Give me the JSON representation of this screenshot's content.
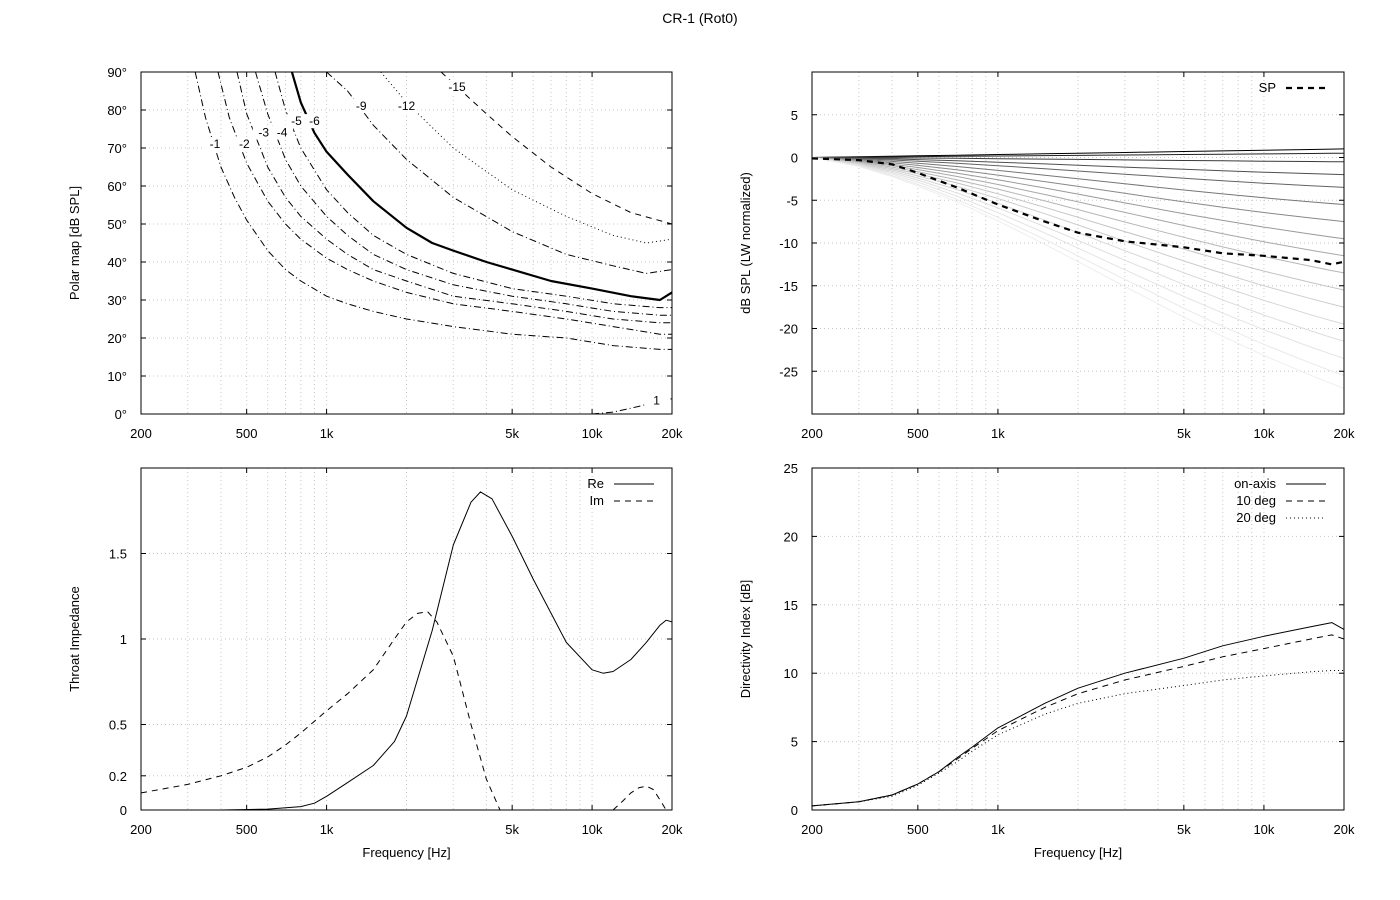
{
  "title": "CR-1 (Rot0)",
  "colors": {
    "axis": "#000000",
    "grid": "#c8c8c8"
  },
  "chart_data": [
    {
      "id": "polar",
      "type": "line",
      "title": "",
      "xlabel": "",
      "ylabel": "Polar map [dB SPL]",
      "xscale": "log",
      "xlim": [
        200,
        20000
      ],
      "ylim": [
        0,
        90
      ],
      "xticks": [
        {
          "v": 200,
          "label": "200"
        },
        {
          "v": 500,
          "label": "500"
        },
        {
          "v": 1000,
          "label": "1k"
        },
        {
          "v": 5000,
          "label": "5k"
        },
        {
          "v": 10000,
          "label": "10k"
        },
        {
          "v": 20000,
          "label": "20k"
        }
      ],
      "yticks": [
        {
          "v": 0,
          "label": "0°"
        },
        {
          "v": 10,
          "label": "10°"
        },
        {
          "v": 20,
          "label": "20°"
        },
        {
          "v": 30,
          "label": "30°"
        },
        {
          "v": 40,
          "label": "40°"
        },
        {
          "v": 50,
          "label": "50°"
        },
        {
          "v": 60,
          "label": "60°"
        },
        {
          "v": 70,
          "label": "70°"
        },
        {
          "v": 80,
          "label": "80°"
        },
        {
          "v": 90,
          "label": "90°"
        }
      ],
      "grid": true,
      "series": [
        {
          "label": "-1",
          "style": "dashdot",
          "width": 1,
          "label_at": [
            380,
            70
          ],
          "x": [
            320,
            350,
            400,
            450,
            500,
            600,
            700,
            800,
            1000,
            1200,
            1500,
            2000,
            3000,
            5000,
            8000,
            12000,
            18000,
            20000
          ],
          "y": [
            90,
            78,
            65,
            57,
            51,
            43,
            38,
            35,
            31,
            29,
            27,
            25,
            23,
            21,
            20,
            18,
            17,
            17
          ]
        },
        {
          "label": "-2",
          "style": "dashdot",
          "width": 1,
          "label_at": [
            490,
            70
          ],
          "x": [
            390,
            430,
            500,
            600,
            700,
            800,
            1000,
            1200,
            1500,
            2000,
            3000,
            5000,
            8000,
            12000,
            18000,
            20000
          ],
          "y": [
            90,
            78,
            66,
            56,
            50,
            46,
            41,
            38,
            35,
            32,
            29,
            27,
            25,
            23,
            21,
            21
          ]
        },
        {
          "label": "-3",
          "style": "dashdot",
          "width": 1,
          "label_at": [
            580,
            73
          ],
          "x": [
            460,
            500,
            600,
            700,
            800,
            1000,
            1200,
            1500,
            2000,
            3000,
            5000,
            8000,
            12000,
            18000,
            20000
          ],
          "y": [
            90,
            79,
            65,
            57,
            52,
            46,
            42,
            38,
            35,
            31,
            29,
            27,
            25,
            24,
            24
          ]
        },
        {
          "label": "-4",
          "style": "dashdot",
          "width": 1,
          "label_at": [
            680,
            73
          ],
          "x": [
            540,
            600,
            700,
            800,
            1000,
            1200,
            1500,
            2000,
            3000,
            5000,
            8000,
            12000,
            18000,
            20000
          ],
          "y": [
            90,
            79,
            67,
            60,
            52,
            47,
            42,
            38,
            34,
            31,
            29,
            27,
            26,
            26
          ]
        },
        {
          "label": "-5",
          "style": "dashdot",
          "width": 1,
          "label_at": [
            770,
            76
          ],
          "x": [
            640,
            700,
            800,
            1000,
            1200,
            1500,
            2000,
            3000,
            5000,
            8000,
            12000,
            18000,
            20000
          ],
          "y": [
            90,
            80,
            70,
            59,
            53,
            47,
            42,
            37,
            33,
            31,
            29,
            28,
            28
          ]
        },
        {
          "label": "-6",
          "style": "solid",
          "width": 2.2,
          "label_at": [
            900,
            76
          ],
          "x": [
            740,
            800,
            900,
            1000,
            1200,
            1500,
            2000,
            2500,
            3000,
            4000,
            5000,
            7000,
            10000,
            14000,
            18000,
            20000
          ],
          "y": [
            90,
            82,
            74,
            69,
            63,
            56,
            49,
            45,
            43,
            40,
            38,
            35,
            33,
            31,
            30,
            32
          ]
        },
        {
          "label": "-9",
          "style": "dashdot",
          "width": 1,
          "label_at": [
            1350,
            80
          ],
          "x": [
            1000,
            1200,
            1500,
            2000,
            3000,
            5000,
            8000,
            12000,
            16000,
            20000
          ],
          "y": [
            90,
            85,
            76,
            67,
            57,
            48,
            42,
            39,
            37,
            38
          ]
        },
        {
          "label": "-12",
          "style": "dotted",
          "width": 1,
          "label_at": [
            2000,
            80
          ],
          "x": [
            1600,
            2000,
            3000,
            5000,
            8000,
            12000,
            16000,
            20000
          ],
          "y": [
            90,
            82,
            70,
            59,
            52,
            47,
            45,
            46
          ]
        },
        {
          "label": "-15",
          "style": "dashed",
          "width": 1,
          "label_at": [
            3100,
            85
          ],
          "x": [
            2700,
            3000,
            4000,
            5000,
            7000,
            10000,
            14000,
            20000
          ],
          "y": [
            90,
            87,
            79,
            73,
            65,
            58,
            53,
            50
          ]
        },
        {
          "label": "1",
          "style": "dashdot",
          "width": 1,
          "label_at": [
            17500,
            2.5
          ],
          "x": [
            10000,
            12000,
            15000,
            18000,
            20000
          ],
          "y": [
            0,
            0.5,
            2,
            3.5,
            4
          ]
        }
      ]
    },
    {
      "id": "spl",
      "type": "line",
      "title": "",
      "xlabel": "",
      "ylabel": "dB SPL (LW normalized)",
      "xscale": "log",
      "xlim": [
        200,
        20000
      ],
      "ylim": [
        -30,
        10
      ],
      "xticks": [
        {
          "v": 200,
          "label": "200"
        },
        {
          "v": 500,
          "label": "500"
        },
        {
          "v": 1000,
          "label": "1k"
        },
        {
          "v": 5000,
          "label": "5k"
        },
        {
          "v": 10000,
          "label": "10k"
        },
        {
          "v": 20000,
          "label": "20k"
        }
      ],
      "yticks": [
        {
          "v": -25,
          "label": "-25"
        },
        {
          "v": -20,
          "label": "-20"
        },
        {
          "v": -15,
          "label": "-15"
        },
        {
          "v": -10,
          "label": "-10"
        },
        {
          "v": -5,
          "label": "-5"
        },
        {
          "v": 0,
          "label": "0"
        },
        {
          "v": 5,
          "label": "5"
        }
      ],
      "grid": true,
      "legend": "top-right",
      "x": [
        200,
        300,
        400,
        500,
        700,
        1000,
        1500,
        2000,
        3000,
        5000,
        7000,
        10000,
        15000,
        18000,
        20000
      ],
      "family_end_values": [
        1,
        0.5,
        -0.5,
        -2,
        -3.5,
        -5.5,
        -7.5,
        -9.5,
        -11.5,
        -13.5,
        -15.5,
        -17.5,
        -19.5,
        -21.5,
        -23.5,
        -25.5,
        -27
      ],
      "family_colors": [
        "#000000",
        "#222222",
        "#3a3a3a",
        "#4f4f4f",
        "#636363",
        "#767676",
        "#888888",
        "#999999",
        "#a8a8a8",
        "#b6b6b6",
        "#c3c3c3",
        "#cdcdcd",
        "#d6d6d6",
        "#dedede",
        "#e4e4e4",
        "#e9e9e9",
        "#eeeeee"
      ],
      "series": [
        {
          "name": "SP",
          "style": "dashed",
          "width": 2.2,
          "y": [
            -0.1,
            -0.3,
            -0.8,
            -1.8,
            -3.5,
            -5.5,
            -7.5,
            -8.8,
            -9.8,
            -10.5,
            -11.2,
            -11.5,
            -12.0,
            -12.5,
            -12.2
          ]
        }
      ]
    },
    {
      "id": "impedance",
      "type": "line",
      "title": "",
      "xlabel": "Frequency [Hz]",
      "ylabel": "Throat Impedance",
      "xscale": "log",
      "xlim": [
        200,
        20000
      ],
      "ylim": [
        0,
        2.0
      ],
      "xticks": [
        {
          "v": 200,
          "label": "200"
        },
        {
          "v": 500,
          "label": "500"
        },
        {
          "v": 1000,
          "label": "1k"
        },
        {
          "v": 5000,
          "label": "5k"
        },
        {
          "v": 10000,
          "label": "10k"
        },
        {
          "v": 20000,
          "label": "20k"
        }
      ],
      "yticks": [
        {
          "v": 0,
          "label": "0"
        },
        {
          "v": 0.2,
          "label": "0.2"
        },
        {
          "v": 0.5,
          "label": "0.5"
        },
        {
          "v": 1,
          "label": "1"
        },
        {
          "v": 1.5,
          "label": "1.5"
        }
      ],
      "grid": true,
      "legend": "top-right",
      "series": [
        {
          "name": "Re",
          "style": "solid",
          "width": 1,
          "x": [
            200,
            400,
            600,
            800,
            900,
            1000,
            1200,
            1500,
            1800,
            2000,
            2500,
            3000,
            3500,
            3800,
            4200,
            5000,
            6000,
            8000,
            10000,
            11000,
            12000,
            14000,
            16000,
            18000,
            19000,
            20000
          ],
          "y": [
            0,
            0,
            0.005,
            0.02,
            0.04,
            0.08,
            0.16,
            0.26,
            0.4,
            0.55,
            1.05,
            1.55,
            1.8,
            1.86,
            1.82,
            1.6,
            1.35,
            0.98,
            0.82,
            0.8,
            0.81,
            0.88,
            0.98,
            1.08,
            1.11,
            1.1
          ]
        },
        {
          "name": "Im",
          "style": "dashed",
          "width": 1,
          "x": [
            200,
            300,
            400,
            500,
            600,
            700,
            800,
            1000,
            1200,
            1500,
            1800,
            2000,
            2200,
            2400,
            2600,
            3000,
            3500,
            4000,
            4500
          ],
          "y": [
            0.1,
            0.15,
            0.2,
            0.25,
            0.31,
            0.38,
            0.45,
            0.58,
            0.68,
            0.82,
            1.0,
            1.1,
            1.15,
            1.16,
            1.1,
            0.9,
            0.5,
            0.18,
            0
          ]
        },
        {
          "name": "",
          "style": "dashed",
          "width": 1,
          "x": [
            12000,
            13000,
            14000,
            15000,
            16000,
            17000,
            18000,
            19000
          ],
          "y": [
            0,
            0.05,
            0.1,
            0.13,
            0.14,
            0.12,
            0.06,
            0
          ]
        }
      ]
    },
    {
      "id": "directivity",
      "type": "line",
      "title": "",
      "xlabel": "Frequency [Hz]",
      "ylabel": "Directivity Index [dB]",
      "xscale": "log",
      "xlim": [
        200,
        20000
      ],
      "ylim": [
        0,
        25
      ],
      "xticks": [
        {
          "v": 200,
          "label": "200"
        },
        {
          "v": 500,
          "label": "500"
        },
        {
          "v": 1000,
          "label": "1k"
        },
        {
          "v": 5000,
          "label": "5k"
        },
        {
          "v": 10000,
          "label": "10k"
        },
        {
          "v": 20000,
          "label": "20k"
        }
      ],
      "yticks": [
        {
          "v": 0,
          "label": "0"
        },
        {
          "v": 5,
          "label": "5"
        },
        {
          "v": 10,
          "label": "10"
        },
        {
          "v": 15,
          "label": "15"
        },
        {
          "v": 20,
          "label": "20"
        },
        {
          "v": 25,
          "label": "25"
        }
      ],
      "grid": true,
      "legend": "top-right",
      "series": [
        {
          "name": "on-axis",
          "style": "solid",
          "width": 1,
          "x": [
            200,
            300,
            400,
            500,
            600,
            700,
            800,
            1000,
            1500,
            2000,
            3000,
            5000,
            7000,
            10000,
            15000,
            18000,
            20000
          ],
          "y": [
            0.3,
            0.6,
            1.1,
            1.9,
            2.8,
            3.8,
            4.6,
            6.0,
            7.8,
            8.9,
            10,
            11.1,
            12,
            12.7,
            13.4,
            13.7,
            13.2
          ]
        },
        {
          "name": "10 deg",
          "style": "dashed",
          "width": 1,
          "x": [
            200,
            300,
            400,
            500,
            600,
            700,
            800,
            1000,
            1500,
            2000,
            3000,
            5000,
            7000,
            10000,
            15000,
            18000,
            20000
          ],
          "y": [
            0.3,
            0.6,
            1.1,
            1.9,
            2.8,
            3.7,
            4.5,
            5.8,
            7.5,
            8.5,
            9.5,
            10.5,
            11.2,
            11.8,
            12.5,
            12.8,
            12.5
          ]
        },
        {
          "name": "20 deg",
          "style": "dotted",
          "width": 1,
          "x": [
            200,
            300,
            400,
            500,
            600,
            700,
            800,
            1000,
            1500,
            2000,
            3000,
            5000,
            7000,
            10000,
            15000,
            18000,
            20000
          ],
          "y": [
            0.3,
            0.6,
            1.0,
            1.8,
            2.7,
            3.5,
            4.3,
            5.5,
            7.0,
            7.8,
            8.5,
            9.1,
            9.5,
            9.8,
            10.1,
            10.2,
            10.2
          ]
        }
      ]
    }
  ]
}
